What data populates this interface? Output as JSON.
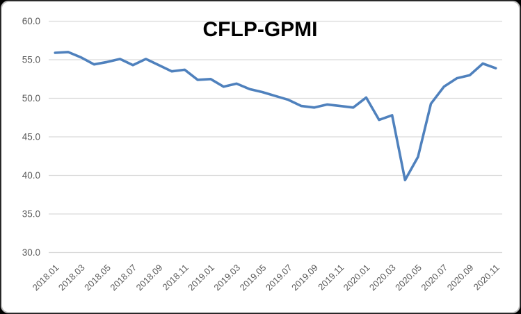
{
  "window": {
    "outer_background": "#000000",
    "card_background": "#ffffff",
    "card_border_color": "#b9b9b9"
  },
  "chart_data": {
    "type": "line",
    "title": "CFLP-GPMI",
    "categories": [
      "2018.01",
      "2018.02",
      "2018.03",
      "2018.04",
      "2018.05",
      "2018.06",
      "2018.07",
      "2018.08",
      "2018.09",
      "2018.10",
      "2018.11",
      "2018.12",
      "2019.01",
      "2019.02",
      "2019.03",
      "2019.04",
      "2019.05",
      "2019.06",
      "2019.07",
      "2019.08",
      "2019.09",
      "2019.10",
      "2019.11",
      "2019.12",
      "2020.01",
      "2020.02",
      "2020.03",
      "2020.04",
      "2020.05",
      "2020.06",
      "2020.07",
      "2020.08",
      "2020.09",
      "2020.10",
      "2020.11"
    ],
    "values": [
      55.9,
      56.0,
      55.3,
      54.4,
      54.7,
      55.1,
      54.3,
      55.1,
      54.3,
      53.5,
      53.7,
      52.4,
      52.5,
      51.5,
      51.9,
      51.2,
      50.8,
      50.3,
      49.8,
      49.0,
      48.8,
      49.2,
      49.0,
      48.8,
      50.1,
      47.2,
      47.8,
      39.4,
      42.4,
      49.3,
      51.5,
      52.6,
      53.0,
      54.5,
      53.9
    ],
    "x_tick_labels": [
      "2018.01",
      "2018.03",
      "2018.05",
      "2018.07",
      "2018.09",
      "2018.11",
      "2019.01",
      "2019.03",
      "2019.05",
      "2019.07",
      "2019.09",
      "2019.11",
      "2020.01",
      "2020.03",
      "2020.05",
      "2020.07",
      "2020.09",
      "2020.11"
    ],
    "y_tick_labels": [
      "60.0",
      "55.0",
      "50.0",
      "45.0",
      "40.0",
      "35.0",
      "30.0"
    ],
    "ylim": [
      30,
      60
    ],
    "grid": true,
    "legend": "none",
    "x_label_rotation_deg": -45,
    "line_color": "#4F81BD",
    "gridline_color": "#D9D9D9",
    "axis_label_color": "#595959"
  }
}
